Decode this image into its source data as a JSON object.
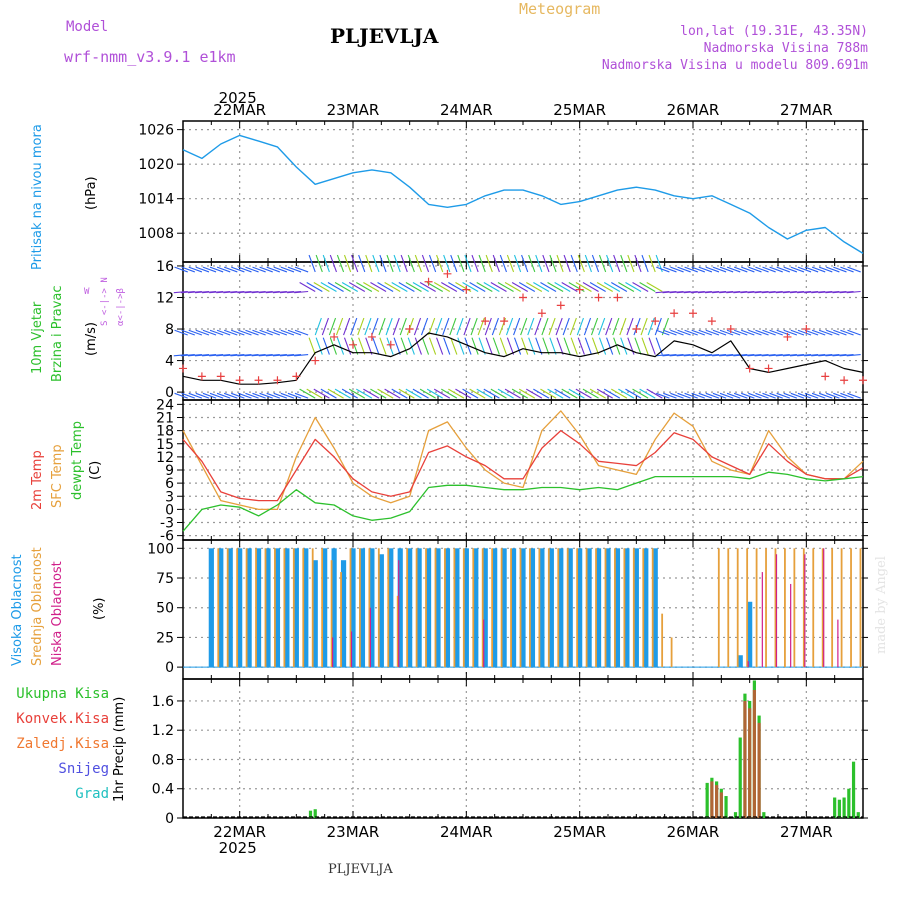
{
  "header": {
    "model_label": "Model",
    "model_value": "wrf-nmm_v3.9.1  e1km",
    "title": "PLJEVLJA",
    "meteogram": "Meteogram",
    "lonlat": "lon,lat (19.31E, 43.35N)",
    "elevation": "Nadmorska Visina 788m",
    "model_elevation": "Nadmorska Visina u modelu 809.691m",
    "credit": "made by Angel",
    "footer": "PLJEVLJA"
  },
  "colors": {
    "pressure": "#1e9be8",
    "temp2m": "#e8403a",
    "sfc": "#e6a03c",
    "dew": "#2cc02c",
    "high": "#1e9be8",
    "mid": "#e6a03c",
    "low": "#d0208a",
    "total": "#2cc02c",
    "konv": "#e8403a",
    "zaledj": "#f07830",
    "snow": "#5050e0",
    "grad": "#20c0c0",
    "wind_speed": "#000000",
    "gust": "#e84040",
    "wind_dir": "#c060e0"
  },
  "axis": {
    "year": "2025",
    "dates": [
      "22MAR",
      "23MAR",
      "24MAR",
      "25MAR",
      "26MAR",
      "27MAR"
    ]
  },
  "legend": {
    "wind_dir_n": "N",
    "wind_dir_s": "S",
    "wind_dir_w": "W",
    "wind_dir_e": "E",
    "wind_dir_alpha": "α<-|->β"
  },
  "chart_data": [
    {
      "type": "line",
      "panel": "pressure",
      "ylabel_side": "Pritisak na nivou mora",
      "ylabel": "(hPa)",
      "yticks": [
        1008,
        1014,
        1020,
        1026
      ],
      "ylim": [
        1003,
        1027.5
      ],
      "grid": true,
      "series": [
        {
          "name": "Pritisak na nivou mora",
          "x": [
            0,
            4,
            8,
            12,
            16,
            20,
            24,
            28,
            32,
            36,
            40,
            44,
            48,
            52,
            56,
            60,
            64,
            68,
            72,
            76,
            80,
            84,
            88,
            92,
            96,
            100,
            104,
            108,
            112,
            116,
            120,
            124,
            128,
            132,
            136,
            140,
            144
          ],
          "values": [
            1022.5,
            1021,
            1023.5,
            1025,
            1024,
            1023,
            1019.5,
            1016.5,
            1017.5,
            1018.5,
            1019,
            1018.5,
            1016,
            1013,
            1012.5,
            1013,
            1014.5,
            1015.5,
            1015.5,
            1014.5,
            1013,
            1013.5,
            1014.5,
            1015.5,
            1016,
            1015.5,
            1014.5,
            1014,
            1014.5,
            1013,
            1011.5,
            1009,
            1007,
            1008.5,
            1009,
            1006.5,
            1004.5
          ]
        }
      ]
    },
    {
      "type": "line",
      "panel": "wind",
      "ylabel_side": "10m Vjetar Brzina i Pravac",
      "ylabel": "(m/s)",
      "yticks": [
        0,
        4,
        8,
        12,
        16
      ],
      "ylim": [
        -1,
        16.5
      ],
      "grid": true,
      "series": [
        {
          "name": "Brzina",
          "x": [
            0,
            4,
            8,
            12,
            16,
            20,
            24,
            28,
            32,
            36,
            40,
            44,
            48,
            52,
            56,
            60,
            64,
            68,
            72,
            76,
            80,
            84,
            88,
            92,
            96,
            100,
            104,
            108,
            112,
            116,
            120,
            124,
            128,
            132,
            136,
            140,
            144
          ],
          "values": [
            2,
            1.5,
            1.5,
            1,
            1,
            1.2,
            1.5,
            5,
            6,
            5,
            5,
            4.5,
            5.5,
            7.5,
            7,
            6,
            5,
            4.5,
            5.5,
            5,
            5,
            4.5,
            5,
            6,
            5,
            4.5,
            6.5,
            6,
            5,
            6.5,
            3,
            2.5,
            3,
            3.5,
            4,
            3,
            2.5
          ]
        },
        {
          "name": "Udari",
          "x": [
            0,
            4,
            8,
            12,
            16,
            20,
            24,
            28,
            32,
            36,
            40,
            44,
            48,
            52,
            56,
            60,
            64,
            68,
            72,
            76,
            80,
            84,
            88,
            92,
            96,
            100,
            104,
            108,
            112,
            116,
            120,
            124,
            128,
            132,
            136,
            140,
            144
          ],
          "values": [
            3,
            2,
            2,
            1.5,
            1.5,
            1.5,
            2,
            4,
            7,
            6,
            7,
            6,
            8,
            14,
            15,
            13,
            9,
            9,
            12,
            10,
            11,
            13,
            12,
            12,
            8,
            9,
            10,
            10,
            9,
            8,
            3,
            3,
            7,
            8,
            2,
            1.5,
            1.5
          ]
        }
      ]
    },
    {
      "type": "line",
      "panel": "temperature",
      "ylabels_side": [
        "2m Temp",
        "SFC Temp",
        "dewpt Temp"
      ],
      "ylabel": "(C)",
      "yticks": [
        -6,
        -3,
        0,
        3,
        6,
        9,
        12,
        15,
        18,
        21,
        24
      ],
      "ylim": [
        -7,
        25
      ],
      "grid": true,
      "series": [
        {
          "name": "2m Temp",
          "x": [
            0,
            4,
            8,
            12,
            16,
            20,
            24,
            28,
            32,
            36,
            40,
            44,
            48,
            52,
            56,
            60,
            64,
            68,
            72,
            76,
            80,
            84,
            88,
            92,
            96,
            100,
            104,
            108,
            112,
            116,
            120,
            124,
            128,
            132,
            136,
            140,
            144
          ],
          "values": [
            16,
            11,
            4,
            2.5,
            2,
            2,
            9,
            16,
            12,
            7,
            4,
            3,
            4,
            13,
            14.5,
            12,
            10,
            7,
            7,
            14,
            18,
            15,
            11,
            10.5,
            10,
            13,
            17.5,
            16,
            12,
            10,
            8,
            15,
            11,
            8,
            7,
            7,
            9.5
          ]
        },
        {
          "name": "SFC Temp",
          "x": [
            0,
            4,
            8,
            12,
            16,
            20,
            24,
            28,
            32,
            36,
            40,
            44,
            48,
            52,
            56,
            60,
            64,
            68,
            72,
            76,
            80,
            84,
            88,
            92,
            96,
            100,
            104,
            108,
            112,
            116,
            120,
            124,
            128,
            132,
            136,
            140,
            144
          ],
          "values": [
            18,
            10,
            2,
            1,
            0,
            0,
            12,
            21,
            14,
            6,
            3,
            1.5,
            3,
            18,
            20,
            14,
            9,
            6,
            5,
            18,
            22.5,
            17,
            10,
            9,
            8,
            16,
            22,
            19,
            11,
            9,
            8,
            18,
            12,
            8,
            7,
            7,
            11
          ]
        },
        {
          "name": "dewpt Temp",
          "x": [
            0,
            4,
            8,
            12,
            16,
            20,
            24,
            28,
            32,
            36,
            40,
            44,
            48,
            52,
            56,
            60,
            64,
            68,
            72,
            76,
            80,
            84,
            88,
            92,
            96,
            100,
            104,
            108,
            112,
            116,
            120,
            124,
            128,
            132,
            136,
            140,
            144
          ],
          "values": [
            -5,
            0,
            1,
            0.5,
            -1.5,
            1,
            4.5,
            1.5,
            1,
            -1.5,
            -2.5,
            -2,
            -0.5,
            5,
            5.5,
            5.5,
            5,
            4.5,
            4.5,
            5,
            5,
            4.5,
            5,
            4.5,
            6,
            7.5,
            7.5,
            7.5,
            7.5,
            7.5,
            7,
            8.5,
            8,
            7,
            6.5,
            7,
            7.5
          ]
        }
      ]
    },
    {
      "type": "bar",
      "panel": "clouds",
      "ylabels_side": [
        "Visoka Oblacnost",
        "Srednja Oblacnost",
        "Niska Oblacnost"
      ],
      "ylabel": "(%)",
      "yticks": [
        0,
        25,
        50,
        75,
        100
      ],
      "ylim": [
        -10,
        107
      ],
      "grid": true,
      "series": [
        {
          "name": "Visoka Oblacnost",
          "hours": [
            6,
            8,
            10,
            12,
            14,
            16,
            18,
            20,
            22,
            24,
            26,
            28,
            30,
            32,
            34,
            36,
            38,
            40,
            42,
            44,
            46,
            48,
            50,
            52,
            54,
            56,
            58,
            60,
            62,
            64,
            66,
            68,
            70,
            72,
            74,
            76,
            78,
            80,
            82,
            84,
            86,
            88,
            90,
            92,
            94,
            96,
            98,
            100,
            102,
            104,
            106,
            108,
            110,
            112,
            114,
            116,
            118,
            120,
            122,
            124,
            126,
            128,
            130,
            132,
            134,
            136,
            138,
            140,
            142,
            144
          ],
          "values": [
            100,
            100,
            100,
            100,
            100,
            100,
            100,
            100,
            100,
            100,
            100,
            90,
            100,
            100,
            90,
            100,
            100,
            100,
            95,
            100,
            100,
            100,
            100,
            100,
            100,
            100,
            100,
            100,
            100,
            100,
            100,
            100,
            100,
            100,
            100,
            100,
            100,
            100,
            100,
            100,
            100,
            100,
            100,
            100,
            100,
            100,
            100,
            100,
            0,
            0,
            0,
            0,
            0,
            0,
            0,
            0,
            10,
            55,
            0,
            0,
            0,
            0,
            0,
            0,
            0,
            0,
            0,
            0,
            0,
            0
          ]
        },
        {
          "name": "Srednja Oblacnost",
          "hours": [
            7,
            9,
            11,
            13,
            15,
            17,
            19,
            21,
            23,
            25,
            27,
            29,
            31,
            33,
            35,
            37,
            39,
            41,
            43,
            45,
            47,
            49,
            51,
            53,
            55,
            57,
            59,
            61,
            63,
            65,
            67,
            69,
            71,
            73,
            75,
            77,
            79,
            81,
            83,
            85,
            87,
            89,
            91,
            93,
            95,
            97,
            99,
            101,
            103,
            113,
            115,
            117,
            119,
            121,
            123,
            125,
            127,
            129,
            131,
            133,
            135,
            137,
            139,
            141,
            143
          ],
          "values": [
            100,
            100,
            100,
            100,
            100,
            100,
            100,
            100,
            100,
            100,
            100,
            100,
            90,
            80,
            100,
            100,
            100,
            100,
            100,
            60,
            100,
            100,
            100,
            100,
            100,
            100,
            100,
            100,
            100,
            100,
            100,
            100,
            100,
            100,
            100,
            100,
            100,
            100,
            100,
            100,
            100,
            100,
            100,
            100,
            100,
            100,
            100,
            45,
            25,
            100,
            100,
            100,
            100,
            100,
            100,
            100,
            100,
            100,
            100,
            100,
            100,
            100,
            100,
            100,
            100
          ]
        },
        {
          "name": "Niska Oblacnost",
          "hours": [
            32,
            36,
            40,
            46,
            64,
            120,
            123,
            126,
            129,
            132,
            136,
            139
          ],
          "values": [
            25,
            30,
            50,
            90,
            40,
            5,
            80,
            95,
            70,
            95,
            100,
            40
          ]
        }
      ]
    },
    {
      "type": "bar",
      "panel": "precipitation",
      "ylabels_side": [
        "Ukupna Kisa",
        "Konvek.Kisa",
        "Zaledj.Kisa",
        "Snijeg",
        "Grad"
      ],
      "ylabel": "1hr Precip (mm)",
      "yticks": [
        0,
        0.4,
        0.8,
        1.2,
        1.6
      ],
      "ylim": [
        0,
        1.9
      ],
      "grid": true,
      "series": [
        {
          "name": "Ukupna Kisa",
          "hours": [
            27,
            28,
            111,
            112,
            113,
            114,
            115,
            117,
            118,
            119,
            120,
            121,
            122,
            123,
            138,
            139,
            140,
            141,
            142,
            143
          ],
          "values": [
            0.1,
            0.12,
            0.48,
            0.55,
            0.5,
            0.4,
            0.3,
            0.08,
            1.1,
            1.7,
            1.6,
            1.88,
            1.4,
            0.08,
            0.28,
            0.25,
            0.28,
            0.4,
            0.77,
            0.08
          ]
        },
        {
          "name": "Konvek.Kisa",
          "hours": [
            112,
            113,
            114,
            119,
            120,
            121,
            122
          ],
          "values": [
            0.5,
            0.45,
            0.35,
            1.6,
            1.5,
            1.75,
            1.3
          ]
        }
      ]
    }
  ]
}
